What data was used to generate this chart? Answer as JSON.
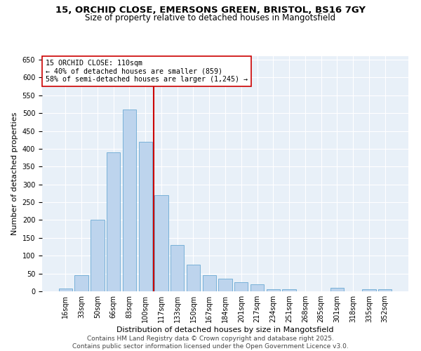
{
  "title1": "15, ORCHID CLOSE, EMERSONS GREEN, BRISTOL, BS16 7GY",
  "title2": "Size of property relative to detached houses in Mangotsfield",
  "xlabel": "Distribution of detached houses by size in Mangotsfield",
  "ylabel": "Number of detached properties",
  "categories": [
    "16sqm",
    "33sqm",
    "50sqm",
    "66sqm",
    "83sqm",
    "100sqm",
    "117sqm",
    "133sqm",
    "150sqm",
    "167sqm",
    "184sqm",
    "201sqm",
    "217sqm",
    "234sqm",
    "251sqm",
    "268sqm",
    "285sqm",
    "301sqm",
    "318sqm",
    "335sqm",
    "352sqm"
  ],
  "values": [
    8,
    45,
    200,
    390,
    510,
    420,
    270,
    130,
    75,
    45,
    35,
    25,
    20,
    5,
    5,
    0,
    0,
    10,
    0,
    5,
    5
  ],
  "bar_color": "#bdd4ed",
  "bar_edgecolor": "#6aaad4",
  "vline_color": "#cc0000",
  "annotation_text": "15 ORCHID CLOSE: 110sqm\n← 40% of detached houses are smaller (859)\n58% of semi-detached houses are larger (1,245) →",
  "annotation_box_edgecolor": "#cc0000",
  "ylim": [
    0,
    660
  ],
  "yticks": [
    0,
    50,
    100,
    150,
    200,
    250,
    300,
    350,
    400,
    450,
    500,
    550,
    600,
    650
  ],
  "footer": "Contains HM Land Registry data © Crown copyright and database right 2025.\nContains public sector information licensed under the Open Government Licence v3.0.",
  "bg_color": "#e8f0f8",
  "title_fontsize": 9.5,
  "subtitle_fontsize": 8.5,
  "axis_label_fontsize": 8,
  "tick_fontsize": 7,
  "footer_fontsize": 6.5,
  "vline_bar_index": 5.5
}
